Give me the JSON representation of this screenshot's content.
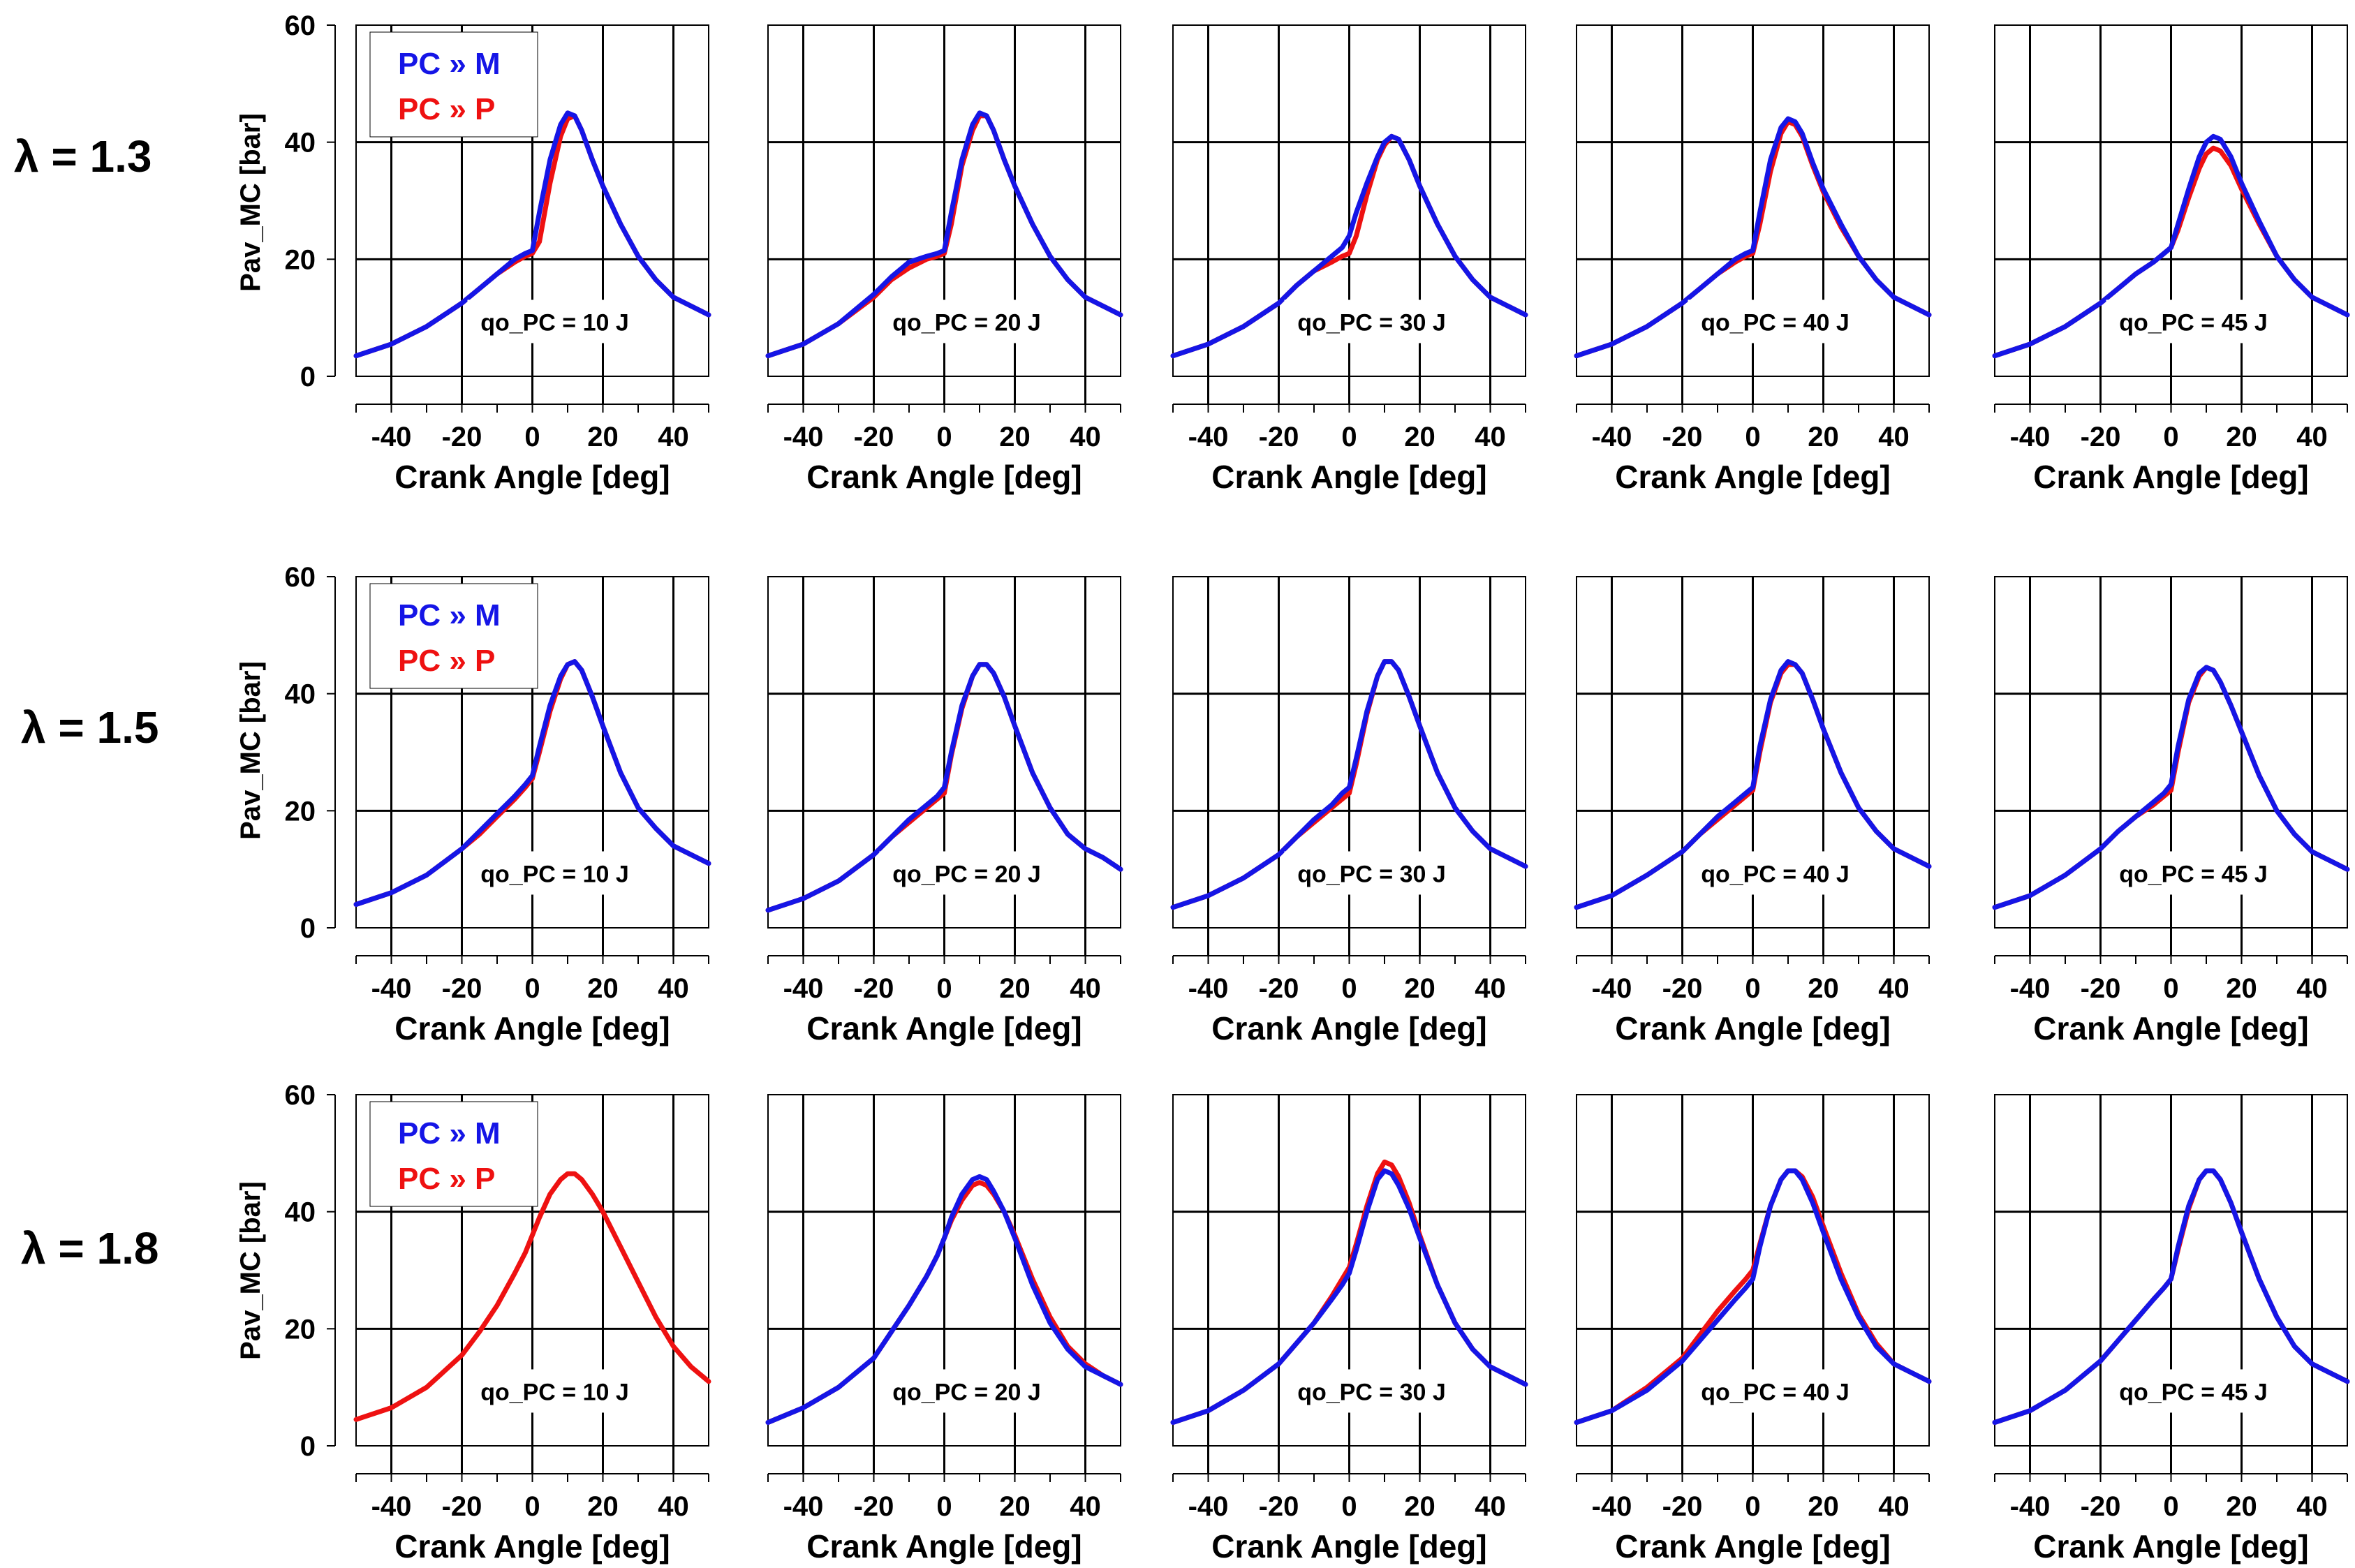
{
  "figure": {
    "y_axis_label": "Pav_MC [bar]",
    "x_axis_label": "Crank Angle [deg]",
    "legend": {
      "m_label": "PC »  M",
      "p_label": "PC »  P"
    },
    "colors": {
      "m_series": "#1515e6",
      "p_series": "#ee1111",
      "axis": "#000000"
    },
    "row_labels": [
      {
        "symbol": "λ",
        "text": " = 1.3"
      },
      {
        "symbol": "λ",
        "text": " = 1.5"
      },
      {
        "symbol": "λ",
        "text": " = 1.8"
      }
    ]
  },
  "chart_data": {
    "type": "line",
    "title": "",
    "xlabel": "Crank Angle [deg]",
    "ylabel": "Pav_MC [bar]",
    "xlim": [
      -50,
      50
    ],
    "ylim": [
      0,
      60
    ],
    "x_ticks": [
      -40,
      -20,
      0,
      20,
      40
    ],
    "y_ticks": [
      0,
      20,
      40,
      60
    ],
    "grid": true,
    "legend": [
      "PC »  M",
      "PC »  P"
    ],
    "x": [
      -50,
      -40,
      -30,
      -20,
      -15,
      -10,
      -5,
      -2,
      0,
      2,
      5,
      8,
      10,
      12,
      14,
      17,
      20,
      25,
      30,
      35,
      40,
      45,
      50
    ],
    "panels": [
      {
        "row": 0,
        "col": 0,
        "lambda": "λ = 1.3",
        "annotation": "qo_PC = 10 J",
        "series": [
          {
            "name": "PC »  M",
            "values": [
              3.5,
              5.5,
              8.5,
              12.5,
              15,
              17.5,
              20,
              21,
              21.5,
              28,
              37,
              43,
              45,
              44.5,
              42,
              37,
              32.5,
              26,
              20.5,
              16.5,
              13.5,
              12,
              10.5
            ]
          },
          {
            "name": "PC »  P",
            "values": [
              3.5,
              5.5,
              8.5,
              12.5,
              15,
              17.5,
              19.5,
              20.5,
              21,
              23,
              33,
              41,
              44,
              44.5,
              42,
              37,
              32.5,
              26,
              20.5,
              16.5,
              13.5,
              12,
              10.5
            ]
          }
        ]
      },
      {
        "row": 0,
        "col": 1,
        "lambda": "λ = 1.3",
        "annotation": "qo_PC = 20 J",
        "series": [
          {
            "name": "PC »  M",
            "values": [
              3.5,
              5.5,
              9,
              14,
              17,
              19.5,
              20.5,
              21,
              21.5,
              28,
              37,
              43,
              45,
              44.5,
              42,
              37,
              32.5,
              26,
              20.5,
              16.5,
              13.5,
              12,
              10.5
            ]
          },
          {
            "name": "PC »  P",
            "values": [
              3.5,
              5.5,
              9,
              13.5,
              16.5,
              18.5,
              20,
              20.5,
              21,
              26,
              36,
              42,
              44.5,
              44.5,
              42,
              37,
              32.5,
              26,
              20.5,
              16.5,
              13.5,
              12,
              10.5
            ]
          }
        ]
      },
      {
        "row": 0,
        "col": 2,
        "lambda": "λ = 1.3",
        "annotation": "qo_PC = 30 J",
        "series": [
          {
            "name": "PC »  M",
            "values": [
              3.5,
              5.5,
              8.5,
              12.5,
              15.5,
              18,
              20.5,
              22,
              24,
              28,
              33,
              37.5,
              40,
              41,
              40.5,
              37,
              32.5,
              26,
              20.5,
              16.5,
              13.5,
              12,
              10.5
            ]
          },
          {
            "name": "PC »  P",
            "values": [
              3.5,
              5.5,
              8.5,
              12.5,
              15.5,
              18,
              19.5,
              20.5,
              21,
              24,
              31,
              37,
              39.5,
              41,
              40.5,
              37,
              32.5,
              26,
              20.5,
              16.5,
              13.5,
              12,
              10.5
            ]
          }
        ]
      },
      {
        "row": 0,
        "col": 3,
        "lambda": "λ = 1.3",
        "annotation": "qo_PC = 40 J",
        "series": [
          {
            "name": "PC »  M",
            "values": [
              3.5,
              5.5,
              8.5,
              12.5,
              15,
              17.5,
              20,
              21,
              21.5,
              28,
              37,
              42.5,
              44,
              43.5,
              41.5,
              36.5,
              32,
              26,
              20.5,
              16.5,
              13.5,
              12,
              10.5
            ]
          },
          {
            "name": "PC »  P",
            "values": [
              3.5,
              5.5,
              8.5,
              12.5,
              15,
              17.5,
              19.5,
              20.5,
              21,
              26,
              35,
              41.5,
              43.5,
              43,
              41,
              36,
              31.5,
              25.5,
              20.5,
              16.5,
              13.5,
              12,
              10.5
            ]
          }
        ]
      },
      {
        "row": 0,
        "col": 4,
        "lambda": "λ = 1.3",
        "annotation": "qo_PC = 45 J",
        "series": [
          {
            "name": "PC »  M",
            "values": [
              3.5,
              5.5,
              8.5,
              12.5,
              15,
              17.5,
              19.5,
              21,
              22,
              26,
              32,
              37.5,
              40,
              41,
              40.5,
              37.5,
              33,
              26.5,
              20.5,
              16.5,
              13.5,
              12,
              10.5
            ]
          },
          {
            "name": "PC »  P",
            "values": [
              3.5,
              5.5,
              8.5,
              12.5,
              15,
              17.5,
              19.5,
              21,
              22,
              25,
              30.5,
              35.5,
              38,
              39,
              38.5,
              36,
              32,
              26,
              20.5,
              16.5,
              13.5,
              12,
              10.5
            ]
          }
        ]
      },
      {
        "row": 1,
        "col": 0,
        "lambda": "λ = 1.5",
        "annotation": "qo_PC = 10 J",
        "series": [
          {
            "name": "PC »  M",
            "values": [
              4,
              6,
              9,
              13.5,
              16.5,
              19.5,
              22.5,
              24.5,
              26,
              31,
              38,
              43,
              45,
              45.5,
              44,
              39.5,
              34.5,
              26.5,
              20.5,
              17,
              14,
              12.5,
              11
            ]
          },
          {
            "name": "PC »  P",
            "values": [
              4,
              6,
              9,
              13.5,
              16,
              19,
              22,
              24,
              25.5,
              30,
              37,
              42.5,
              45,
              45.5,
              44,
              39.5,
              34.5,
              26.5,
              20.5,
              17,
              14,
              12.5,
              11
            ]
          }
        ]
      },
      {
        "row": 1,
        "col": 1,
        "lambda": "λ = 1.5",
        "annotation": "qo_PC = 20 J",
        "series": [
          {
            "name": "PC »  M",
            "values": [
              3,
              5,
              8,
              12.5,
              15.5,
              18.5,
              21,
              22.5,
              24,
              30,
              38,
              43,
              45,
              45,
              43.5,
              39.5,
              34.5,
              26.5,
              20.5,
              16,
              13.5,
              12,
              10
            ]
          },
          {
            "name": "PC »  P",
            "values": [
              3,
              5,
              8,
              12.5,
              15.5,
              18,
              20.5,
              22,
              23,
              29.5,
              37.5,
              43,
              45,
              45,
              43.5,
              39.5,
              34.5,
              26.5,
              20.5,
              16,
              13.5,
              12,
              10
            ]
          }
        ]
      },
      {
        "row": 1,
        "col": 2,
        "lambda": "λ = 1.5",
        "annotation": "qo_PC = 30 J",
        "series": [
          {
            "name": "PC »  M",
            "values": [
              3.5,
              5.5,
              8.5,
              12.5,
              15.5,
              18.5,
              21,
              23,
              24,
              29,
              37,
              43,
              45.5,
              45.5,
              44,
              39.5,
              34.5,
              26.5,
              20.5,
              16.5,
              13.5,
              12,
              10.5
            ]
          },
          {
            "name": "PC »  P",
            "values": [
              3.5,
              5.5,
              8.5,
              12.5,
              15.5,
              18,
              20.5,
              22,
              23,
              28,
              36.5,
              43,
              45.5,
              45.5,
              44,
              39.5,
              34.5,
              26.5,
              20.5,
              16.5,
              13.5,
              12,
              10.5
            ]
          }
        ]
      },
      {
        "row": 1,
        "col": 3,
        "lambda": "λ = 1.5",
        "annotation": "qo_PC = 40 J",
        "series": [
          {
            "name": "PC »  M",
            "values": [
              3.5,
              5.5,
              9,
              13,
              16,
              19,
              21.5,
              23,
              24,
              31,
              39,
              44,
              45.5,
              45,
              43.5,
              39,
              34,
              26.5,
              20.5,
              16.5,
              13.5,
              12,
              10.5
            ]
          },
          {
            "name": "PC »  P",
            "values": [
              3.5,
              5.5,
              9,
              13,
              16,
              18.5,
              21,
              22.5,
              23.5,
              30,
              38.5,
              43.5,
              45,
              45,
              43.5,
              39,
              34,
              26.5,
              20.5,
              16.5,
              13.5,
              12,
              10.5
            ]
          }
        ]
      },
      {
        "row": 1,
        "col": 4,
        "lambda": "λ = 1.5",
        "annotation": "qo_PC = 45 J",
        "series": [
          {
            "name": "PC »  M",
            "values": [
              3.5,
              5.5,
              9,
              13.5,
              16.5,
              19,
              21.5,
              23,
              24.5,
              31,
              39,
              43.5,
              44.5,
              44,
              42,
              38,
              33.5,
              26,
              20,
              16,
              13,
              11.5,
              10
            ]
          },
          {
            "name": "PC »  P",
            "values": [
              3.5,
              5.5,
              9,
              13.5,
              16.5,
              19,
              21,
              22.5,
              23.5,
              30,
              38.5,
              43,
              44.5,
              44,
              42,
              38,
              33.5,
              26,
              20,
              16,
              13,
              11.5,
              10
            ]
          }
        ]
      },
      {
        "row": 2,
        "col": 0,
        "lambda": "λ = 1.8",
        "annotation": "qo_PC = 10 J",
        "series": [
          {
            "name": "PC »  P",
            "values": [
              4.5,
              6.5,
              10,
              15.5,
              19.5,
              24,
              29.5,
              33,
              36,
              39,
              43,
              45.5,
              46.5,
              46.5,
              45.5,
              43,
              40,
              34,
              28,
              22,
              17,
              13.5,
              11
            ]
          }
        ]
      },
      {
        "row": 2,
        "col": 1,
        "lambda": "λ = 1.8",
        "annotation": "qo_PC = 20 J",
        "series": [
          {
            "name": "PC »  M",
            "values": [
              4,
              6.5,
              10,
              15,
              19.5,
              24,
              29,
              32.5,
              35.5,
              39,
              43,
              45.5,
              46,
              45.5,
              43.5,
              40,
              35.5,
              27.5,
              21,
              16.5,
              13.5,
              12,
              10.5
            ]
          },
          {
            "name": "PC »  P",
            "values": [
              4,
              6.5,
              10,
              15,
              19.5,
              24,
              29,
              32.5,
              35.5,
              38.5,
              42,
              44.5,
              45,
              44.5,
              43,
              40,
              36,
              28.5,
              22,
              17,
              14,
              12,
              10.5
            ]
          }
        ]
      },
      {
        "row": 2,
        "col": 2,
        "lambda": "λ = 1.8",
        "annotation": "qo_PC = 30 J",
        "series": [
          {
            "name": "PC »  M",
            "values": [
              4,
              6,
              9.5,
              14,
              17.5,
              21,
              25,
              27.5,
              29.5,
              33.5,
              40,
              45.5,
              47,
              46.5,
              44.5,
              40.5,
              35.5,
              27.5,
              21,
              16.5,
              13.5,
              12,
              10.5
            ]
          },
          {
            "name": "PC »  P",
            "values": [
              4,
              6,
              9.5,
              14,
              17.5,
              21,
              25.5,
              28.5,
              30.5,
              34.5,
              41,
              46.5,
              48.5,
              48,
              46,
              41.5,
              36,
              27.5,
              21,
              16.5,
              13.5,
              12,
              10.5
            ]
          }
        ]
      },
      {
        "row": 2,
        "col": 3,
        "lambda": "λ = 1.8",
        "annotation": "qo_PC = 40 J",
        "series": [
          {
            "name": "PC »  M",
            "values": [
              4,
              6,
              9.5,
              14.5,
              18,
              21.5,
              25,
              27,
              28.5,
              34,
              41,
              45.5,
              47,
              47,
              45.5,
              41.5,
              36.5,
              28.5,
              22,
              17,
              14,
              12.5,
              11
            ]
          },
          {
            "name": "PC »  P",
            "values": [
              4,
              6,
              10,
              15,
              19,
              23,
              26.5,
              28.5,
              30,
              34.5,
              41,
              45.5,
              47,
              47,
              46,
              42.5,
              37.5,
              29.5,
              22.5,
              17.5,
              14,
              12.5,
              11
            ]
          }
        ]
      },
      {
        "row": 2,
        "col": 4,
        "lambda": "λ = 1.8",
        "annotation": "qo_PC = 45 J",
        "series": [
          {
            "name": "PC »  M",
            "values": [
              4,
              6,
              9.5,
              14.5,
              18,
              21.5,
              25,
              27,
              28.5,
              34,
              41,
              45.5,
              47,
              47,
              45.5,
              41.5,
              36.5,
              28.5,
              22,
              17,
              14,
              12.5,
              11
            ]
          },
          {
            "name": "PC »  P",
            "values": [
              4,
              6,
              9.5,
              14.5,
              18,
              21.5,
              25,
              27,
              28.5,
              33.5,
              40.5,
              45.5,
              47,
              47,
              45.5,
              41.5,
              36.5,
              28.5,
              22,
              17,
              14,
              12.5,
              11
            ]
          }
        ]
      }
    ]
  }
}
